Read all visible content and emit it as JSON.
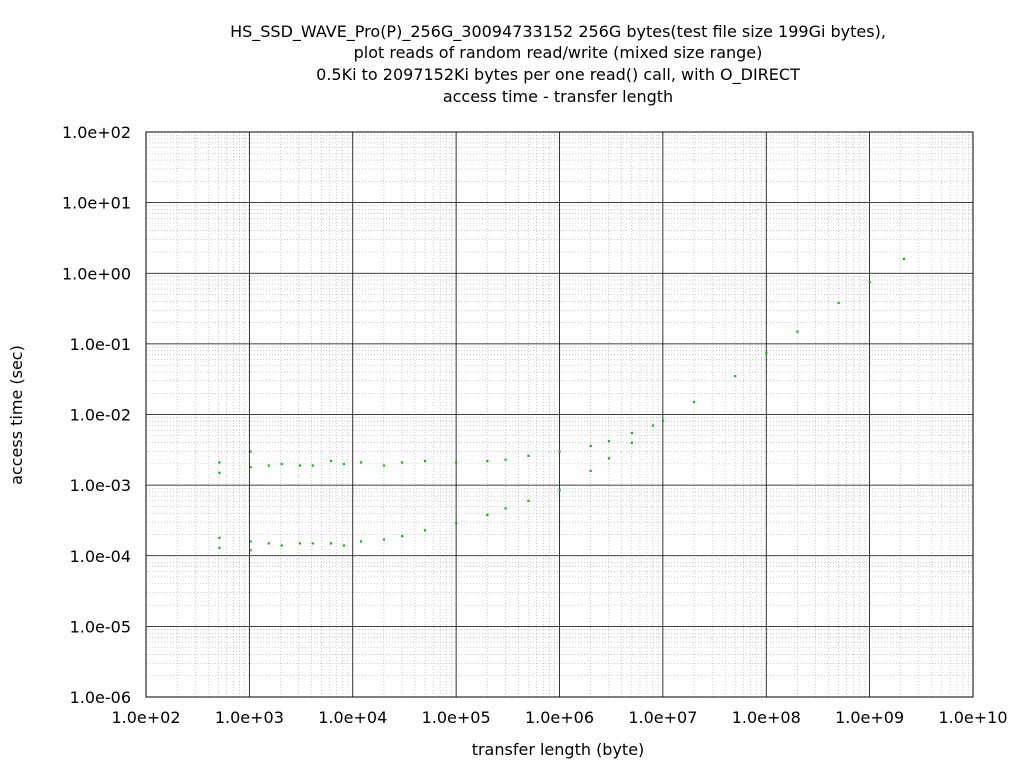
{
  "chart_data": {
    "type": "scatter",
    "title_lines": [
      "HS_SSD_WAVE_Pro(P)_256G_30094733152 256G bytes(test file size 199Gi bytes),",
      "plot reads of random read/write (mixed size range)",
      "0.5Ki to 2097152Ki bytes per one read() call, with O_DIRECT",
      "access time - transfer length"
    ],
    "xlabel": "transfer length (byte)",
    "ylabel": "access time (sec)",
    "xscale": "log",
    "yscale": "log",
    "xlim": [
      100,
      10000000000
    ],
    "ylim": [
      1e-06,
      100
    ],
    "xticks": [
      {
        "value": 100,
        "label": "1.0e+02"
      },
      {
        "value": 1000,
        "label": "1.0e+03"
      },
      {
        "value": 10000,
        "label": "1.0e+04"
      },
      {
        "value": 100000,
        "label": "1.0e+05"
      },
      {
        "value": 1000000,
        "label": "1.0e+06"
      },
      {
        "value": 10000000,
        "label": "1.0e+07"
      },
      {
        "value": 100000000,
        "label": "1.0e+08"
      },
      {
        "value": 1000000000,
        "label": "1.0e+09"
      },
      {
        "value": 10000000000,
        "label": "1.0e+10"
      }
    ],
    "yticks": [
      {
        "value": 100,
        "label": "1.0e+02"
      },
      {
        "value": 10,
        "label": "1.0e+01"
      },
      {
        "value": 1,
        "label": "1.0e+00"
      },
      {
        "value": 0.1,
        "label": "1.0e-01"
      },
      {
        "value": 0.01,
        "label": "1.0e-02"
      },
      {
        "value": 0.001,
        "label": "1.0e-03"
      },
      {
        "value": 0.0001,
        "label": "1.0e-04"
      },
      {
        "value": 1e-05,
        "label": "1.0e-05"
      },
      {
        "value": 1e-06,
        "label": "1.0e-06"
      }
    ],
    "grid": true,
    "legend": "none",
    "series_color": "#00c000",
    "series": [
      {
        "points": [
          [
            512,
            0.0021
          ],
          [
            512,
            0.0015
          ],
          [
            512,
            0.00018
          ],
          [
            512,
            0.00013
          ],
          [
            1024,
            0.003
          ],
          [
            1024,
            0.0018
          ],
          [
            1024,
            0.00016
          ],
          [
            1024,
            0.00012
          ],
          [
            1536,
            0.0019
          ],
          [
            1536,
            0.00015
          ],
          [
            2048,
            0.002
          ],
          [
            2048,
            0.00014
          ],
          [
            3072,
            0.0019
          ],
          [
            3072,
            0.00015
          ],
          [
            4096,
            0.0019
          ],
          [
            4096,
            0.00015
          ],
          [
            6144,
            0.0022
          ],
          [
            6144,
            0.00015
          ],
          [
            8192,
            0.002
          ],
          [
            8192,
            0.00014
          ],
          [
            12000,
            0.0021
          ],
          [
            12000,
            0.00016
          ],
          [
            20000,
            0.0019
          ],
          [
            20000,
            0.00017
          ],
          [
            30000,
            0.0021
          ],
          [
            30000,
            0.00019
          ],
          [
            50000,
            0.0022
          ],
          [
            50000,
            0.00023
          ],
          [
            100000,
            0.0021
          ],
          [
            100000,
            0.00029
          ],
          [
            200000,
            0.0022
          ],
          [
            200000,
            0.00038
          ],
          [
            300000,
            0.0023
          ],
          [
            300000,
            0.00047
          ],
          [
            500000,
            0.0026
          ],
          [
            500000,
            0.0006
          ],
          [
            1000000,
            0.003
          ],
          [
            1000000,
            0.00085
          ],
          [
            2000000,
            0.0036
          ],
          [
            2000000,
            0.0016
          ],
          [
            3000000,
            0.0042
          ],
          [
            3000000,
            0.0024
          ],
          [
            5000000,
            0.0055
          ],
          [
            5000000,
            0.004
          ],
          [
            8000000,
            0.007
          ],
          [
            10000000,
            0.0082
          ],
          [
            20000000,
            0.015
          ],
          [
            50000000,
            0.035
          ],
          [
            100000000,
            0.075
          ],
          [
            200000000,
            0.15
          ],
          [
            500000000,
            0.38
          ],
          [
            1000000000,
            0.75
          ],
          [
            2147483648,
            1.6
          ]
        ]
      }
    ]
  }
}
